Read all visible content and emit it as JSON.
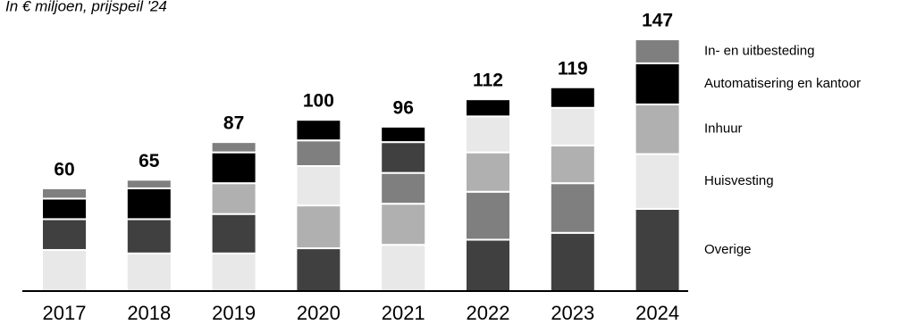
{
  "chart_data": {
    "type": "stacked-bar",
    "subtitle": "In € miljoen, prijspeil '24",
    "categories": [
      "2017",
      "2018",
      "2019",
      "2020",
      "2021",
      "2022",
      "2023",
      "2024"
    ],
    "totals": [
      60,
      65,
      87,
      100,
      96,
      112,
      119,
      147
    ],
    "stacks": [
      {
        "segments": [
          {
            "value": 24,
            "color": "#e8e8e8"
          },
          {
            "value": 18,
            "color": "#404040"
          },
          {
            "value": 12,
            "color": "#000000"
          },
          {
            "value": 6,
            "color": "#7f7f7f"
          }
        ]
      },
      {
        "segments": [
          {
            "value": 22,
            "color": "#e8e8e8"
          },
          {
            "value": 20,
            "color": "#404040"
          },
          {
            "value": 18,
            "color": "#000000"
          },
          {
            "value": 5,
            "color": "#7f7f7f"
          }
        ]
      },
      {
        "segments": [
          {
            "value": 22,
            "color": "#e8e8e8"
          },
          {
            "value": 23,
            "color": "#404040"
          },
          {
            "value": 18,
            "color": "#b0b0b0"
          },
          {
            "value": 18,
            "color": "#000000"
          },
          {
            "value": 6,
            "color": "#7f7f7f"
          }
        ]
      },
      {
        "segments": [
          {
            "value": 25,
            "color": "#404040"
          },
          {
            "value": 25,
            "color": "#b0b0b0"
          },
          {
            "value": 23,
            "color": "#e8e8e8"
          },
          {
            "value": 15,
            "color": "#7f7f7f"
          },
          {
            "value": 12,
            "color": "#000000"
          }
        ]
      },
      {
        "segments": [
          {
            "value": 27,
            "color": "#e8e8e8"
          },
          {
            "value": 24,
            "color": "#b0b0b0"
          },
          {
            "value": 18,
            "color": "#7f7f7f"
          },
          {
            "value": 18,
            "color": "#404040"
          },
          {
            "value": 9,
            "color": "#000000"
          }
        ]
      },
      {
        "segments": [
          {
            "value": 30,
            "color": "#404040"
          },
          {
            "value": 28,
            "color": "#7f7f7f"
          },
          {
            "value": 23,
            "color": "#b0b0b0"
          },
          {
            "value": 21,
            "color": "#e8e8e8"
          },
          {
            "value": 10,
            "color": "#000000"
          }
        ]
      },
      {
        "segments": [
          {
            "value": 34,
            "color": "#404040"
          },
          {
            "value": 29,
            "color": "#7f7f7f"
          },
          {
            "value": 22,
            "color": "#b0b0b0"
          },
          {
            "value": 22,
            "color": "#e8e8e8"
          },
          {
            "value": 12,
            "color": "#000000"
          }
        ]
      },
      {
        "segments": [
          {
            "value": 48,
            "color": "#404040"
          },
          {
            "value": 32,
            "color": "#e8e8e8"
          },
          {
            "value": 29,
            "color": "#b0b0b0"
          },
          {
            "value": 24,
            "color": "#000000"
          },
          {
            "value": 14,
            "color": "#7f7f7f"
          }
        ]
      }
    ],
    "legend": [
      "Overige",
      "Huisvesting",
      "Inhuur",
      "Automatisering en kantoor",
      "In- en uitbesteding"
    ]
  }
}
